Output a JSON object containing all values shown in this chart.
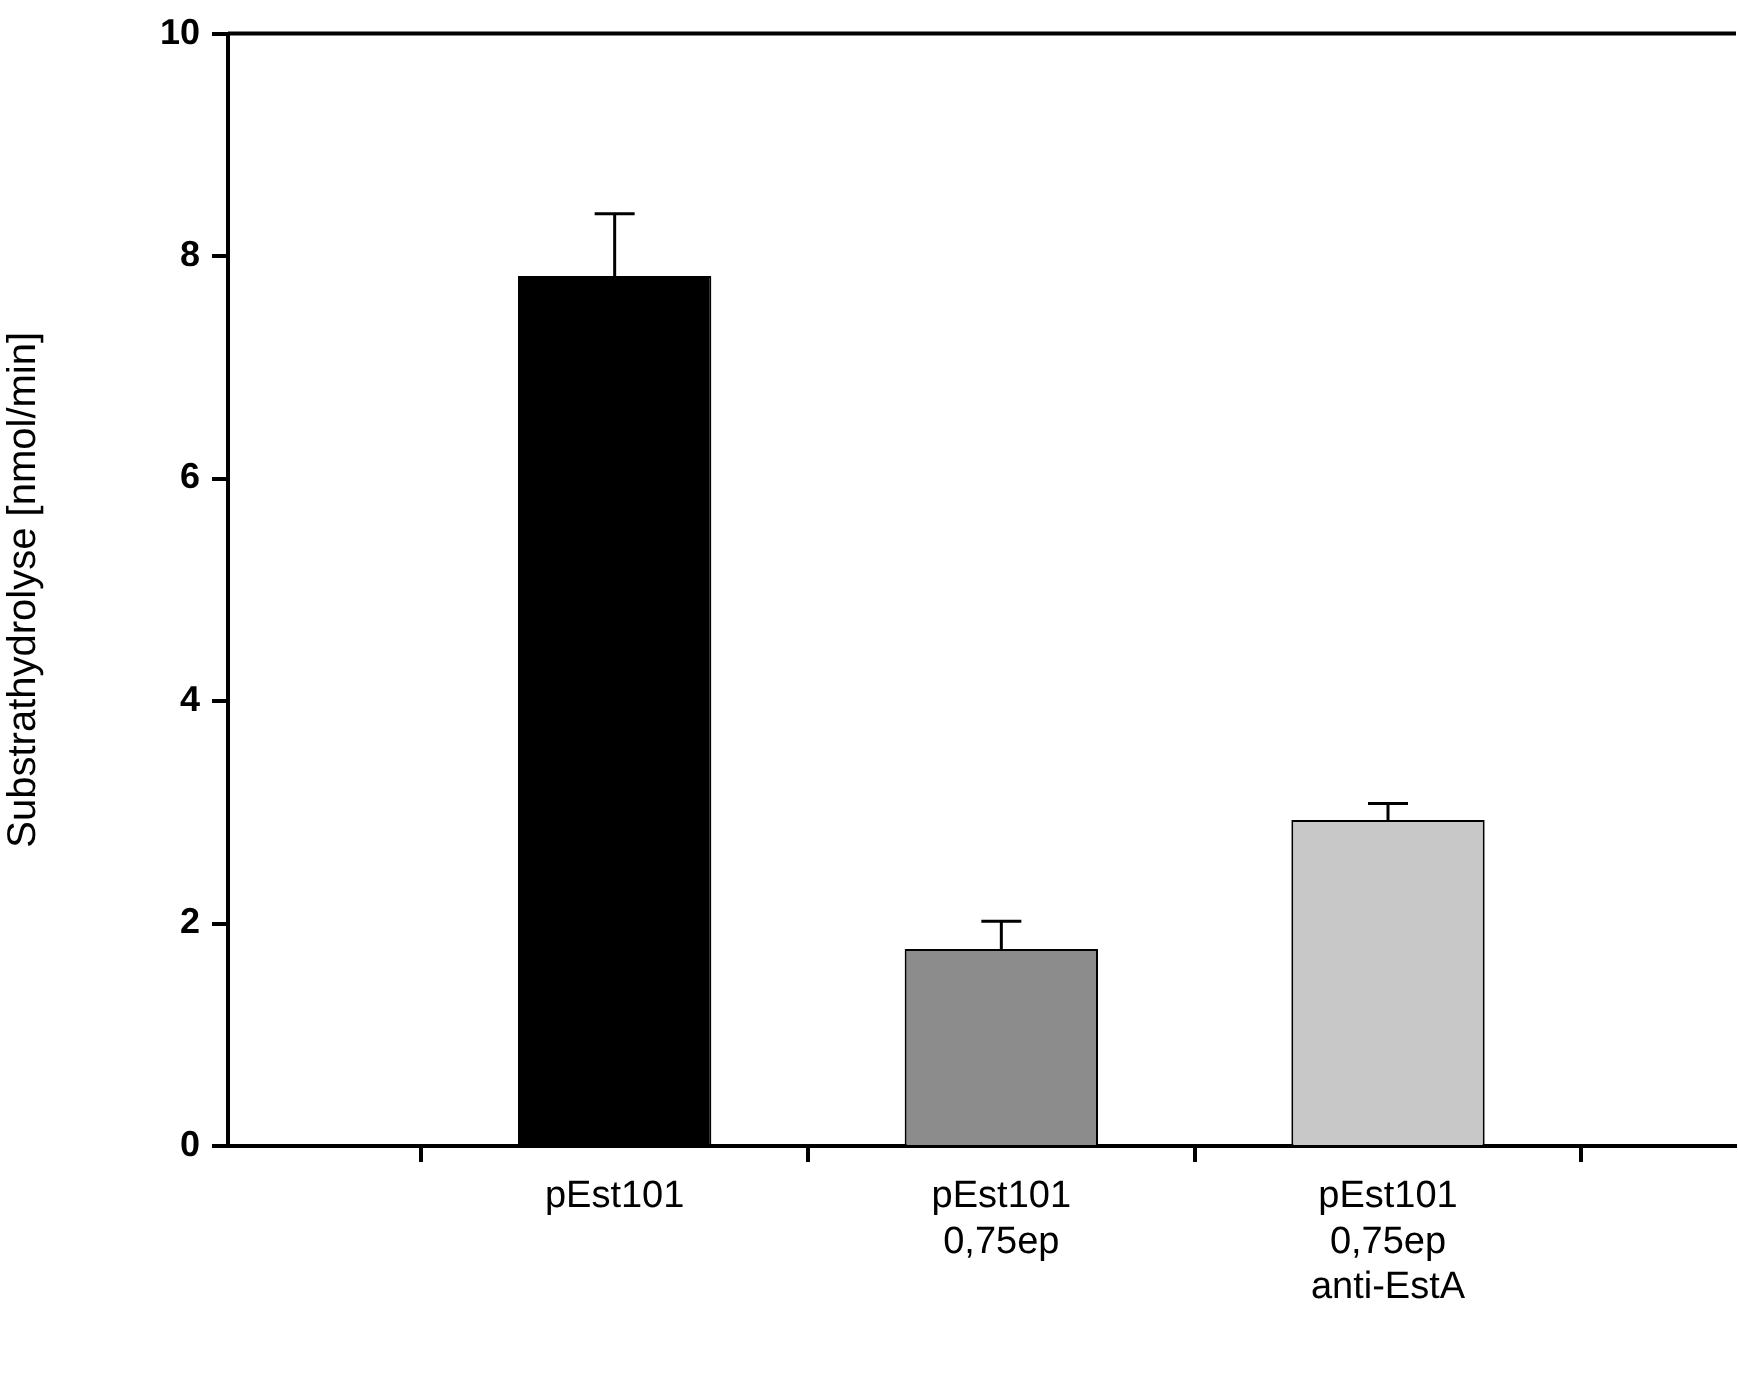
{
  "chart_data": {
    "type": "bar",
    "ylabel": "Substrathydrolyse [nmol/min]",
    "categories": [
      "pEst101",
      "pEst101\n0,75ep",
      "pEst101\n0,75ep\nanti-EstA"
    ],
    "values": [
      7.82,
      1.77,
      2.93
    ],
    "errors": [
      0.56,
      0.25,
      0.15
    ],
    "colors": [
      "#000000",
      "#8c8c8c",
      "#c8c8c8"
    ],
    "ylim": [
      0,
      10
    ],
    "yticks": [
      0,
      2,
      4,
      6,
      8,
      10
    ],
    "grid": false,
    "legend": false
  }
}
